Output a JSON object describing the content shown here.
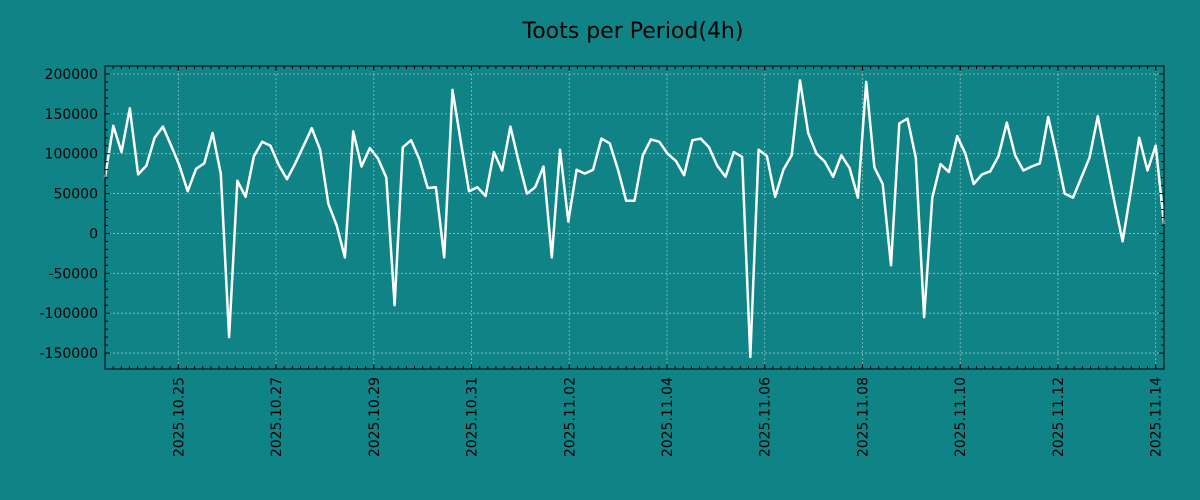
{
  "chart_data": {
    "type": "line",
    "title": "Toots per Period(4h)",
    "xlabel": "",
    "ylabel": "",
    "ylim": [
      -170000,
      210000
    ],
    "yticks": [
      200000,
      150000,
      100000,
      50000,
      0,
      -50000,
      -100000,
      -150000
    ],
    "ytick_labels": [
      "200000",
      "150000",
      "100000",
      "50000",
      "0",
      "-50000",
      "-100000",
      "-150000"
    ],
    "xlim_days": [
      0,
      21.67
    ],
    "xtick_days": [
      1.5,
      3.5,
      5.5,
      7.5,
      9.5,
      11.5,
      13.5,
      15.5,
      17.5,
      19.5,
      21.5
    ],
    "xtick_labels": [
      "2025.10.25",
      "2025.10.27",
      "2025.10.29",
      "2025.10.31",
      "2025.11.02",
      "2025.11.04",
      "2025.11.06",
      "2025.11.08",
      "2025.11.10",
      "2025.11.12",
      "2025.11.14"
    ],
    "grid": true,
    "colors": {
      "background": "#108387",
      "line": "#ffffff",
      "grid": "#8fc4c4",
      "axis": "#000000"
    },
    "series": [
      {
        "name": "Toots",
        "values": [
          70000,
          135000,
          102000,
          157000,
          74000,
          85000,
          120000,
          134000,
          110000,
          85000,
          53000,
          81000,
          88000,
          126000,
          75000,
          -130000,
          66000,
          46000,
          97000,
          115000,
          110000,
          86000,
          68000,
          88000,
          110000,
          132000,
          105000,
          37000,
          10000,
          -30000,
          128000,
          84000,
          107000,
          94000,
          70000,
          -90000,
          108000,
          117000,
          93000,
          57000,
          58000,
          -30000,
          180000,
          115000,
          53000,
          58000,
          47000,
          102000,
          79000,
          134000,
          90000,
          50000,
          58000,
          84000,
          -30000,
          105000,
          15000,
          80000,
          75000,
          80000,
          119000,
          113000,
          80000,
          41000,
          41000,
          98000,
          118000,
          115000,
          100000,
          91000,
          73000,
          117000,
          119000,
          108000,
          85000,
          71000,
          102000,
          96000,
          -155000,
          105000,
          97000,
          46000,
          80000,
          98000,
          192000,
          126000,
          100000,
          90000,
          71000,
          98000,
          82000,
          45000,
          190000,
          83000,
          62000,
          -40000,
          138000,
          144000,
          95000,
          -105000,
          45000,
          87000,
          77000,
          122000,
          100000,
          62000,
          74000,
          78000,
          97000,
          139000,
          98000,
          79000,
          84000,
          88000,
          146000,
          100000,
          50000,
          45000,
          70000,
          95000,
          147000,
          93000,
          40000,
          -10000,
          54000,
          120000,
          79000,
          110000,
          12000
        ]
      }
    ]
  }
}
